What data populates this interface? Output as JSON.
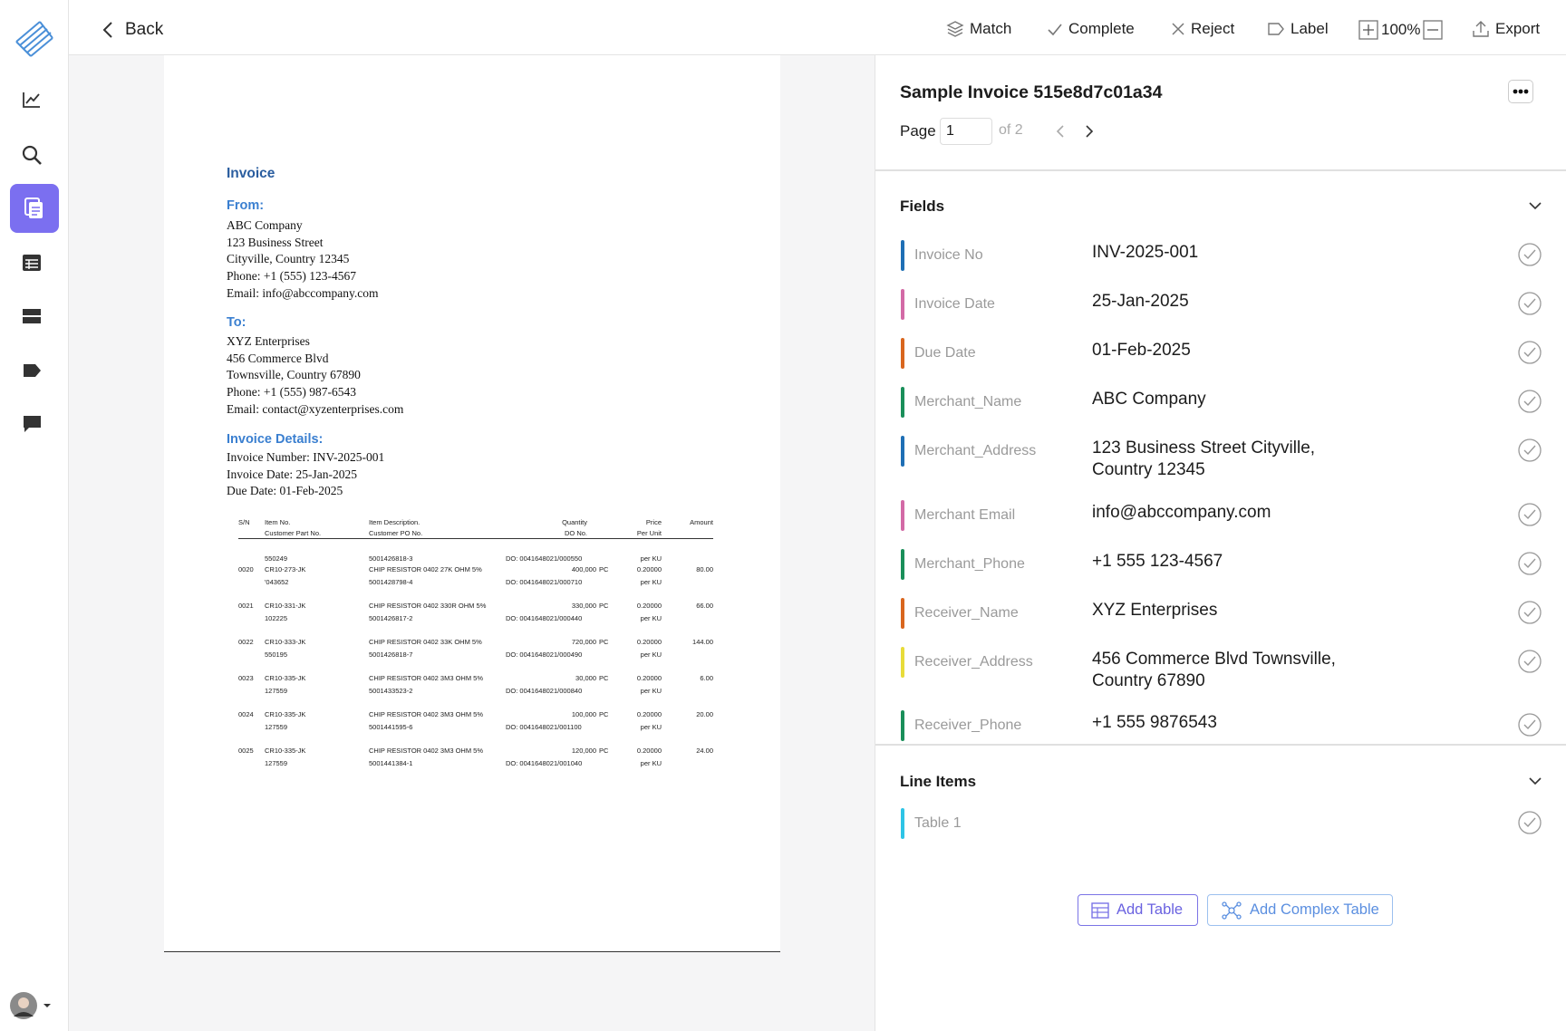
{
  "nav": {
    "back": "Back"
  },
  "toolbar": {
    "match": "Match",
    "complete": "Complete",
    "reject": "Reject",
    "label": "Label",
    "zoom": "100%",
    "export": "Export"
  },
  "document": {
    "title": "Invoice",
    "from": {
      "heading": "From:",
      "lines": [
        "ABC Company",
        "123 Business Street",
        "Cityville, Country 12345",
        "Phone: +1 (555) 123-4567",
        "Email: info@abccompany.com"
      ]
    },
    "to": {
      "heading": "To:",
      "lines": [
        "XYZ Enterprises",
        "456 Commerce Blvd",
        "Townsville, Country 67890",
        "Phone: +1 (555) 987-6543",
        "Email: contact@xyzenterprises.com"
      ]
    },
    "details": {
      "heading": "Invoice Details:",
      "lines": [
        "Invoice Number: INV-2025-001",
        "Invoice Date: 25-Jan-2025",
        "Due Date: 01-Feb-2025"
      ]
    },
    "table": {
      "headers": {
        "sn": "S/N",
        "item_no": "Item No.",
        "part_no": "Customer Part No.",
        "description": "Item Description.",
        "po_no": "Customer PO No.",
        "quantity": "Quantity",
        "do_no": "DO No.",
        "price": "Price",
        "per_unit": "Per Unit",
        "amount": "Amount"
      },
      "rows": [
        {
          "part_no": "550249",
          "po_no": "5001426818-3",
          "do_no": "DO: 0041648021/000550",
          "per_unit": "per KU"
        },
        {
          "sn": "0020",
          "item_no": "CR10-273-JK",
          "part_no": "'043652",
          "description": "CHIP RESISTOR 0402 27K OHM 5%",
          "po_no": "5001428798-4",
          "quantity": "400,000",
          "unit": "PC",
          "do_no": "DO: 0041648021/000710",
          "price": "0.20000",
          "per_unit": "per KU",
          "amount": "80.00"
        },
        {
          "sn": "0021",
          "item_no": "CR10-331-JK",
          "part_no": "102225",
          "description": "CHIP RESISTOR 0402 330R OHM 5%",
          "po_no": "5001426817-2",
          "quantity": "330,000",
          "unit": "PC",
          "do_no": "DO: 0041648021/000440",
          "price": "0.20000",
          "per_unit": "per KU",
          "amount": "66.00"
        },
        {
          "sn": "0022",
          "item_no": "CR10-333-JK",
          "part_no": "550195",
          "description": "CHIP RESISTOR 0402 33K OHM 5%",
          "po_no": "5001426818-7",
          "quantity": "720,000",
          "unit": "PC",
          "do_no": "DO: 0041648021/000490",
          "price": "0.20000",
          "per_unit": "per KU",
          "amount": "144.00"
        },
        {
          "sn": "0023",
          "item_no": "CR10-335-JK",
          "part_no": "127559",
          "description": "CHIP RESISTOR 0402 3M3 OHM 5%",
          "po_no": "5001433523-2",
          "quantity": "30,000",
          "unit": "PC",
          "do_no": "DO: 0041648021/000840",
          "price": "0.20000",
          "per_unit": "per KU",
          "amount": "6.00"
        },
        {
          "sn": "0024",
          "item_no": "CR10-335-JK",
          "part_no": "127559",
          "description": "CHIP RESISTOR 0402 3M3 OHM 5%",
          "po_no": "5001441595-6",
          "quantity": "100,000",
          "unit": "PC",
          "do_no": "DO: 0041648021/001100",
          "price": "0.20000",
          "per_unit": "per KU",
          "amount": "20.00"
        },
        {
          "sn": "0025",
          "item_no": "CR10-335-JK",
          "part_no": "127559",
          "description": "CHIP RESISTOR 0402 3M3 OHM 5%",
          "po_no": "5001441384-1",
          "quantity": "120,000",
          "unit": "PC",
          "do_no": "DO: 0041648021/001040",
          "price": "0.20000",
          "per_unit": "per KU",
          "amount": "24.00"
        }
      ]
    }
  },
  "panel": {
    "title": "Sample Invoice 515e8d7c01a34",
    "page_label": "Page",
    "page": 1,
    "page_of": "of 2",
    "fields_heading": "Fields",
    "fields": [
      {
        "label": "Invoice No",
        "value": "INV-2025-001",
        "color": "#1f6fb5"
      },
      {
        "label": "Invoice Date",
        "value": "25-Jan-2025",
        "color": "#d36aa6"
      },
      {
        "label": "Due Date",
        "value": "01-Feb-2025",
        "color": "#d9661f"
      },
      {
        "label": "Merchant_Name",
        "value": "ABC Company",
        "color": "#1a8f5a"
      },
      {
        "label": "Merchant_Address",
        "value": "123 Business Street Cityville, Country 12345",
        "color": "#1f6fb5"
      },
      {
        "label": "Merchant Email",
        "value": "info@abccompany.com",
        "color": "#d36aa6"
      },
      {
        "label": "Merchant_Phone",
        "value": "+1 555 123-4567",
        "color": "#1a8f5a"
      },
      {
        "label": "Receiver_Name",
        "value": "XYZ Enterprises",
        "color": "#d9661f"
      },
      {
        "label": "Receiver_Address",
        "value": "456 Commerce Blvd Townsville, Country 67890",
        "color": "#e8dc3a"
      },
      {
        "label": "Receiver_Phone",
        "value": "+1 555 9876543",
        "color": "#1a8f5a"
      }
    ],
    "line_items_heading": "Line Items",
    "line_items": [
      {
        "label": "Table 1",
        "color": "#2ec4e6"
      }
    ],
    "add_table": "Add Table",
    "add_complex_table": "Add Complex Table"
  }
}
